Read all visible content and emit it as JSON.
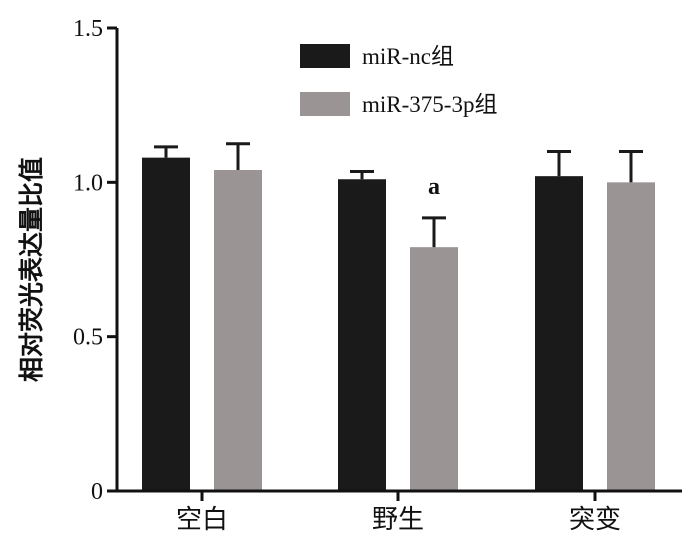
{
  "chart_data": {
    "type": "bar",
    "categories": [
      "空白",
      "野生",
      "突变"
    ],
    "series": [
      {
        "name": "miR-nc组",
        "color": "#1a1a1a",
        "values": [
          1.08,
          1.01,
          1.02
        ],
        "errors": [
          0.035,
          0.025,
          0.08
        ]
      },
      {
        "name": "miR-375-3p组",
        "color": "#9a9494",
        "values": [
          1.04,
          0.79,
          1.0
        ],
        "errors": [
          0.085,
          0.095,
          0.1
        ]
      }
    ],
    "ylabel": "相对荧光表达量比值",
    "xlabel": "",
    "ylim": [
      0,
      1.5
    ],
    "yticks": [
      "0",
      "0.5",
      "1.0",
      "1.5"
    ],
    "annotations": [
      {
        "category": "野生",
        "series": 1,
        "text": "a"
      }
    ],
    "legend_position": "top-center",
    "grid": false
  }
}
